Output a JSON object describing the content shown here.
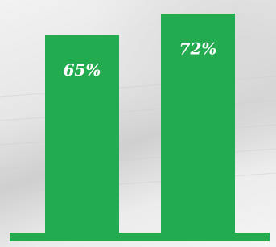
{
  "chart_data": {
    "type": "bar",
    "values": [
      65,
      72
    ],
    "value_labels": [
      "65%",
      "72%"
    ],
    "color": "#22ab4f"
  }
}
